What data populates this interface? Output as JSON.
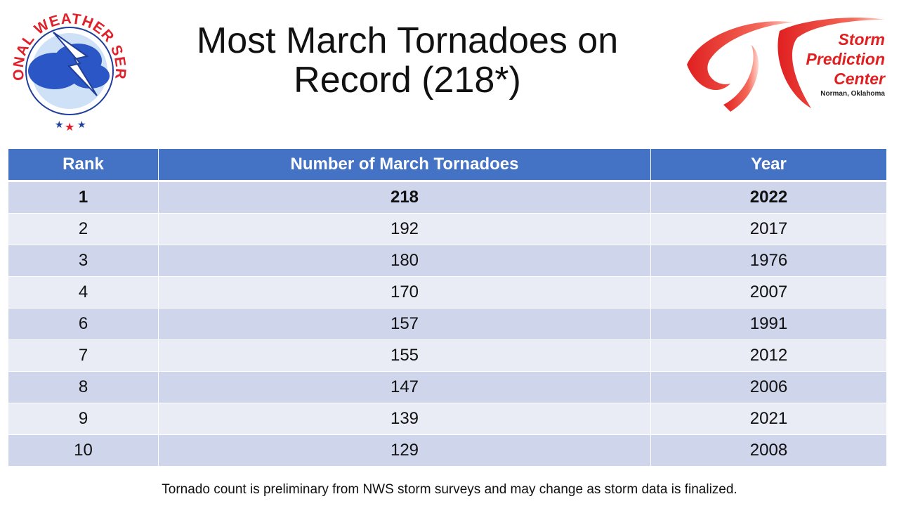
{
  "title": "Most March Tornadoes on Record (218*)",
  "nws_logo": {
    "icon": "nws-logo-icon",
    "text": "NATIONAL WEATHER SERVICE",
    "colors": {
      "red": "#e0202a",
      "blue": "#1f3f9a",
      "cloud": "#2a56c6"
    }
  },
  "spc_logo": {
    "icon": "spc-logo-icon",
    "line1": "Storm",
    "line2": "Prediction",
    "line3": "Center",
    "location": "Norman, Oklahoma",
    "color": "#e02020"
  },
  "table": {
    "headers": [
      "Rank",
      "Number of March Tornadoes",
      "Year"
    ],
    "rows": [
      [
        "1",
        "218",
        "2022"
      ],
      [
        "2",
        "192",
        "2017"
      ],
      [
        "3",
        "180",
        "1976"
      ],
      [
        "4",
        "170",
        "2007"
      ],
      [
        "6",
        "157",
        "1991"
      ],
      [
        "7",
        "155",
        "2012"
      ],
      [
        "8",
        "147",
        "2006"
      ],
      [
        "9",
        "139",
        "2021"
      ],
      [
        "10",
        "129",
        "2008"
      ]
    ],
    "header_color": "#4472c4",
    "row_odd_color": "#cfd5ea",
    "row_even_color": "#e9ebf5"
  },
  "footnote": "Tornado count is preliminary from NWS storm surveys and may change as storm data is finalized."
}
